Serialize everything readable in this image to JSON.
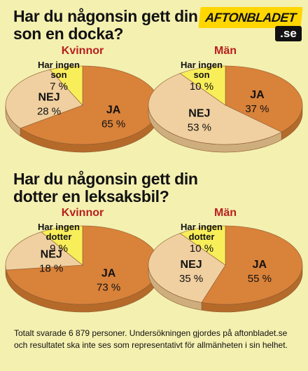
{
  "logo": {
    "main": "AFTONBLADET",
    "suffix": ".se"
  },
  "footnote": "Totalt svarade 6 879 personer. Undersökningen gjordes på aftonbladet.se och resultatet ska inte ses som representativt för allmänheten i sin helhet.",
  "colors": {
    "background": "#f4f0b0",
    "ja": "#d9823a",
    "nej": "#f0d0a0",
    "har_ingen": "#f8ee5a",
    "group_label": "#b71f1f"
  },
  "chart_data": [
    {
      "type": "pie",
      "title": "Har du någonsin gett din son en docka?",
      "group": "Kvinnor",
      "slices": [
        {
          "label": "JA",
          "value": 65,
          "value_label": "65 %"
        },
        {
          "label": "NEJ",
          "value": 28,
          "value_label": "28 %"
        },
        {
          "label": "Har ingen son",
          "value": 7,
          "value_label": "7 %"
        }
      ]
    },
    {
      "type": "pie",
      "title": "Har du någonsin gett din son en docka?",
      "group": "Män",
      "slices": [
        {
          "label": "JA",
          "value": 37,
          "value_label": "37 %"
        },
        {
          "label": "NEJ",
          "value": 53,
          "value_label": "53 %"
        },
        {
          "label": "Har ingen son",
          "value": 10,
          "value_label": "10 %"
        }
      ]
    },
    {
      "type": "pie",
      "title": "Har du någonsin gett din dotter en leksaksbil?",
      "group": "Kvinnor",
      "slices": [
        {
          "label": "JA",
          "value": 73,
          "value_label": "73 %"
        },
        {
          "label": "NEJ",
          "value": 18,
          "value_label": "18 %"
        },
        {
          "label": "Har ingen dotter",
          "value": 9,
          "value_label": "9 %"
        }
      ]
    },
    {
      "type": "pie",
      "title": "Har du någonsin gett din dotter en leksaksbil?",
      "group": "Män",
      "slices": [
        {
          "label": "JA",
          "value": 55,
          "value_label": "55 %"
        },
        {
          "label": "NEJ",
          "value": 35,
          "value_label": "35 %"
        },
        {
          "label": "Har ingen dotter",
          "value": 10,
          "value_label": "10 %"
        }
      ]
    }
  ]
}
